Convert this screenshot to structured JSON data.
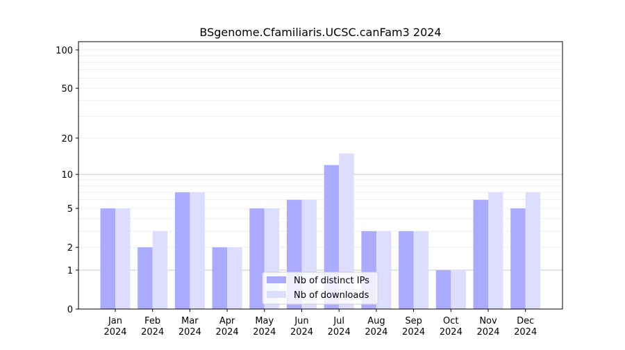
{
  "chart_data": {
    "type": "bar",
    "title": "BSgenome.Cfamiliaris.UCSC.canFam3 2024",
    "xlabel": "",
    "ylabel": "",
    "yscale": "log(1+x)",
    "ylim": [
      0,
      116
    ],
    "yticks": [
      0,
      1,
      2,
      5,
      10,
      20,
      50,
      100
    ],
    "categories": [
      "Jan\n2024",
      "Feb\n2024",
      "Mar\n2024",
      "Apr\n2024",
      "May\n2024",
      "Jun\n2024",
      "Jul\n2024",
      "Aug\n2024",
      "Sep\n2024",
      "Oct\n2024",
      "Nov\n2024",
      "Dec\n2024"
    ],
    "series": [
      {
        "name": "Nb of distinct IPs",
        "color": "#aaaaff",
        "values": [
          5,
          2,
          7,
          2,
          5,
          6,
          12,
          3,
          3,
          1,
          6,
          5
        ]
      },
      {
        "name": "Nb of downloads",
        "color": "#ddddff",
        "values": [
          5,
          3,
          7,
          2,
          5,
          6,
          15,
          3,
          3,
          1,
          7,
          7
        ]
      }
    ],
    "legend": "lower-center",
    "grid": true
  }
}
